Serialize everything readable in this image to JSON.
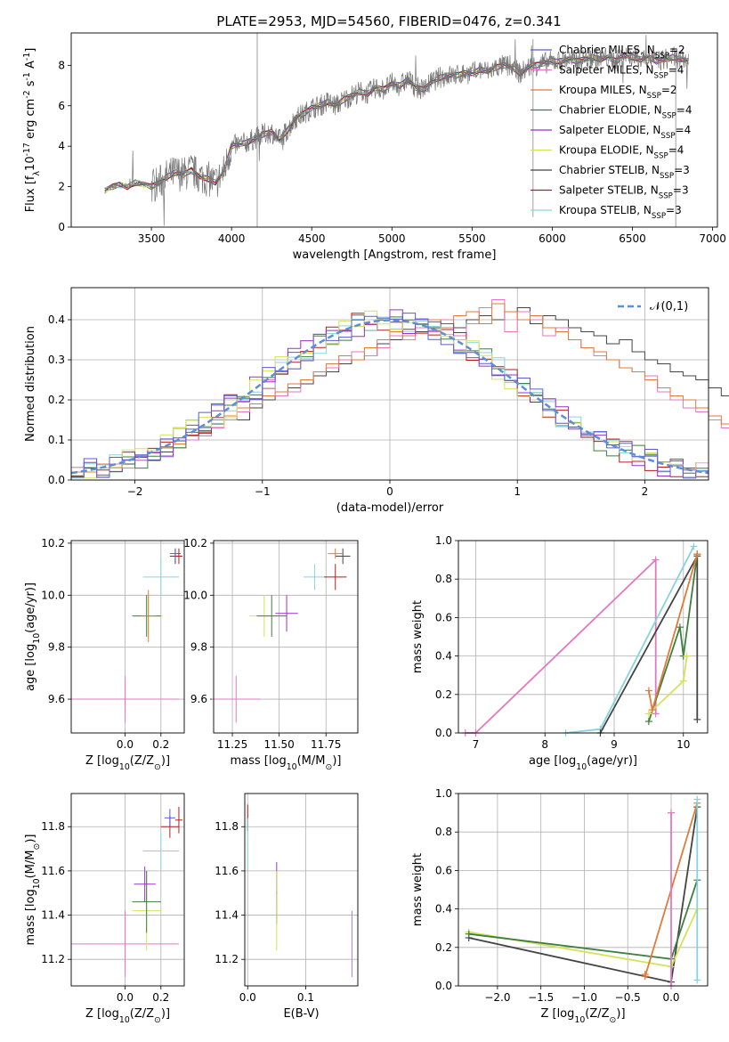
{
  "figure_title": "PLATE=2953, MJD=54560, FIBERID=0476, z=0.341",
  "colors": {
    "chabrier_miles": "#5b5bd6",
    "salpeter_miles": "#e377c2",
    "kroupa_miles": "#e07b39",
    "chabrier_elodie": "#3f7f3f",
    "salpeter_elodie": "#9b30c8",
    "kroupa_elodie": "#d4e25a",
    "chabrier_stelib": "#444444",
    "salpeter_stelib": "#b51d1d",
    "kroupa_stelib": "#86d3e0",
    "gauss": "#5b8fd6",
    "grid": "#b0b0b0"
  },
  "chart_data": [
    {
      "id": "spectrum",
      "type": "line",
      "xlabel": "wavelength [Angstrom, rest frame]",
      "ylabel": "Flux [f$_\\lambda$10$^{-17}$ erg cm$^{-2}$ s$^{-1}$ A$^{-1}$]",
      "xlim": [
        3000,
        7030
      ],
      "ylim": [
        0,
        9.6
      ],
      "xticks": [
        3500,
        4000,
        4500,
        5000,
        5500,
        6000,
        6500,
        7000
      ],
      "yticks": [
        0,
        2,
        4,
        6,
        8
      ],
      "grid": false,
      "legend_position": "top-right",
      "data_x": [
        3210,
        3260,
        3300,
        3350,
        3400,
        3450,
        3500,
        3550,
        3600,
        3650,
        3700,
        3750,
        3800,
        3850,
        3900,
        3950,
        4000,
        4050,
        4100,
        4150,
        4200,
        4250,
        4300,
        4350,
        4400,
        4450,
        4500,
        4550,
        4600,
        4650,
        4700,
        4750,
        4800,
        4850,
        4900,
        4950,
        5000,
        5050,
        5100,
        5150,
        5200,
        5250,
        5300,
        5350,
        5400,
        5450,
        5500,
        5550,
        5600,
        5650,
        5700,
        5750,
        5800,
        5850,
        5900,
        5950,
        6000,
        6050,
        6100,
        6150,
        6200,
        6250,
        6300,
        6350,
        6400,
        6450,
        6500,
        6550,
        6600,
        6650,
        6700,
        6750,
        6800,
        6850
      ],
      "data_y": [
        1.8,
        2.0,
        2.1,
        2.0,
        2.2,
        2.1,
        2.0,
        2.2,
        2.5,
        2.7,
        2.6,
        2.8,
        2.5,
        2.4,
        2.2,
        2.7,
        4.0,
        4.1,
        4.2,
        4.4,
        4.6,
        4.7,
        4.3,
        4.8,
        5.4,
        5.6,
        5.9,
        6.0,
        6.2,
        6.0,
        6.3,
        6.5,
        6.7,
        6.6,
        6.9,
        6.8,
        7.1,
        7.0,
        7.3,
        6.9,
        6.8,
        7.2,
        7.4,
        7.5,
        7.5,
        7.6,
        7.6,
        7.8,
        7.7,
        7.9,
        8.0,
        7.9,
        7.6,
        7.9,
        8.0,
        8.1,
        8.2,
        8.2,
        8.3,
        8.2,
        8.3,
        8.4,
        8.3,
        8.4,
        8.2,
        8.5,
        8.4,
        8.3,
        8.4,
        8.2,
        8.3,
        8.4,
        8.3,
        8.2
      ],
      "series": [
        {
          "name": "Chabrier MILES, N$_{SSP}$=2",
          "color_key": "chabrier_miles"
        },
        {
          "name": "Salpeter MILES, N$_{SSP}$=4",
          "color_key": "salpeter_miles"
        },
        {
          "name": "Kroupa MILES, N$_{SSP}$=2",
          "color_key": "kroupa_miles"
        },
        {
          "name": "Chabrier ELODIE, N$_{SSP}$=4",
          "color_key": "chabrier_elodie"
        },
        {
          "name": "Salpeter ELODIE, N$_{SSP}$=4",
          "color_key": "salpeter_elodie"
        },
        {
          "name": "Kroupa ELODIE, N$_{SSP}$=4",
          "color_key": "kroupa_elodie"
        },
        {
          "name": "Chabrier STELIB, N$_{SSP}$=3",
          "color_key": "chabrier_stelib"
        },
        {
          "name": "Salpeter STELIB, N$_{SSP}$=3",
          "color_key": "salpeter_stelib"
        },
        {
          "name": "Kroupa STELIB, N$_{SSP}$=3",
          "color_key": "kroupa_stelib"
        }
      ]
    },
    {
      "id": "residuals",
      "type": "histogram",
      "xlabel": "(data-model)/error",
      "ylabel": "Normed distribution",
      "xlim": [
        -2.5,
        2.5
      ],
      "ylim": [
        0,
        0.48
      ],
      "xticks": [
        -2,
        -1,
        0,
        1,
        2
      ],
      "yticks": [
        0.0,
        0.1,
        0.2,
        0.3,
        0.4
      ],
      "grid": true,
      "legend_position": "top-right",
      "legend_label": "$\\mathcal{N}(0,1)$",
      "bin_width": 0.1,
      "bin_start": -2.5,
      "series_values": [
        [
          0.02,
          0.02,
          0.03,
          0.03,
          0.04,
          0.05,
          0.05,
          0.07,
          0.09,
          0.1,
          0.12,
          0.14,
          0.16,
          0.15,
          0.18,
          0.2,
          0.21,
          0.23,
          0.24,
          0.26,
          0.27,
          0.29,
          0.3,
          0.31,
          0.34,
          0.35,
          0.36,
          0.37,
          0.38,
          0.39,
          0.38,
          0.4,
          0.41,
          0.4,
          0.42,
          0.43,
          0.39,
          0.41,
          0.4,
          0.38,
          0.37,
          0.36,
          0.34,
          0.35,
          0.32,
          0.3,
          0.29,
          0.27,
          0.26,
          0.25,
          0.23,
          0.21,
          0.19,
          0.18,
          0.16,
          0.14,
          0.12,
          0.11,
          0.1,
          0.08,
          0.07,
          0.06,
          0.05,
          0.04,
          0.04,
          0.03,
          0.02,
          0.03,
          0.02,
          0.02
        ],
        [
          0.01,
          0.02,
          0.03,
          0.04,
          0.03,
          0.05,
          0.07,
          0.06,
          0.08,
          0.1,
          0.11,
          0.13,
          0.15,
          0.17,
          0.19,
          0.25,
          0.21,
          0.22,
          0.25,
          0.27,
          0.28,
          0.3,
          0.32,
          0.31,
          0.33,
          0.36,
          0.35,
          0.38,
          0.37,
          0.4,
          0.36,
          0.39,
          0.43,
          0.45,
          0.37,
          0.42,
          0.4,
          0.36,
          0.38,
          0.35,
          0.33,
          0.31,
          0.3,
          0.28,
          0.27,
          0.26,
          0.22,
          0.2,
          0.18,
          0.17,
          0.15,
          0.13,
          0.12,
          0.1,
          0.09,
          0.07,
          0.06,
          0.05,
          0.05,
          0.04,
          0.03,
          0.03,
          0.02,
          0.02,
          0.01,
          0.02,
          0.01,
          0.01,
          0.01,
          0.01
        ],
        [
          0.02,
          0.02,
          0.04,
          0.03,
          0.05,
          0.06,
          0.07,
          0.08,
          0.09,
          0.11,
          0.13,
          0.15,
          0.16,
          0.18,
          0.19,
          0.21,
          0.22,
          0.24,
          0.25,
          0.27,
          0.29,
          0.31,
          0.3,
          0.33,
          0.35,
          0.37,
          0.36,
          0.39,
          0.4,
          0.38,
          0.41,
          0.42,
          0.39,
          0.44,
          0.42,
          0.4,
          0.41,
          0.38,
          0.37,
          0.35,
          0.33,
          0.32,
          0.3,
          0.28,
          0.27,
          0.25,
          0.23,
          0.21,
          0.2,
          0.18,
          0.16,
          0.14,
          0.13,
          0.14,
          0.11,
          0.09,
          0.07,
          0.06,
          0.05,
          0.05,
          0.04,
          0.03,
          0.03,
          0.02,
          0.02,
          0.02,
          0.01,
          0.02,
          0.02,
          0.01
        ]
      ],
      "series_color_keys": [
        "chabrier_stelib",
        "salpeter_miles",
        "kroupa_miles"
      ]
    },
    {
      "id": "age_vs_Z",
      "type": "scatter",
      "xlabel": "Z [log$_{10}$(Z/Z$_\\odot$)]",
      "ylabel": "age  [log$_{10}$(age/yr)]",
      "xlim": [
        -0.3,
        0.33
      ],
      "ylim": [
        9.47,
        10.21
      ],
      "xticks": [
        0.0,
        0.2
      ],
      "yticks": [
        9.6,
        9.8,
        10.0,
        10.2
      ],
      "grid": true
    },
    {
      "id": "age_vs_mass",
      "type": "scatter",
      "xlabel": "mass [log$_{10}$(M/M$_\\odot$)]",
      "xlim": [
        11.15,
        11.92
      ],
      "ylim": [
        9.47,
        10.21
      ],
      "xticks": [
        11.25,
        11.5,
        11.75
      ],
      "yticks": [
        9.6,
        9.8,
        10.0,
        10.2
      ],
      "grid": true
    },
    {
      "id": "mass_weight_vs_age",
      "type": "line",
      "xlabel": "age  [log$_{10}$(age/yr)]",
      "ylabel": "mass weight",
      "xlim": [
        6.75,
        10.35
      ],
      "ylim": [
        0,
        1
      ],
      "xticks": [
        7,
        8,
        9,
        10
      ],
      "yticks": [
        0.0,
        0.2,
        0.4,
        0.6,
        0.8,
        1.0
      ],
      "grid": true
    },
    {
      "id": "mass_vs_Z",
      "type": "scatter",
      "xlabel": "Z [log$_{10}$(Z/Z$_\\odot$)]",
      "ylabel": "mass [log$_{10}$(M/M$_\\odot$)]",
      "xlim": [
        -0.3,
        0.33
      ],
      "ylim": [
        11.08,
        11.95
      ],
      "xticks": [
        0.0,
        0.2
      ],
      "yticks": [
        11.2,
        11.4,
        11.6,
        11.8
      ],
      "grid": true
    },
    {
      "id": "mass_vs_ebv",
      "type": "scatter",
      "xlabel": "E(B-V)",
      "xlim": [
        -0.005,
        0.19
      ],
      "ylim": [
        11.08,
        11.95
      ],
      "xticks": [
        0.0,
        0.1
      ],
      "yticks": [
        11.2,
        11.4,
        11.6,
        11.8
      ],
      "grid": true
    },
    {
      "id": "mass_weight_vs_Z",
      "type": "line",
      "xlabel": "Z [log$_{10}$(Z/Z$_\\odot$)]",
      "ylabel": "mass weight",
      "xlim": [
        -2.45,
        0.42
      ],
      "ylim": [
        0,
        1
      ],
      "xticks": [
        -2.0,
        -1.5,
        -1.0,
        -0.5,
        0.0
      ],
      "yticks": [
        0.0,
        0.2,
        0.4,
        0.6,
        0.8,
        1.0
      ],
      "grid": true
    }
  ]
}
